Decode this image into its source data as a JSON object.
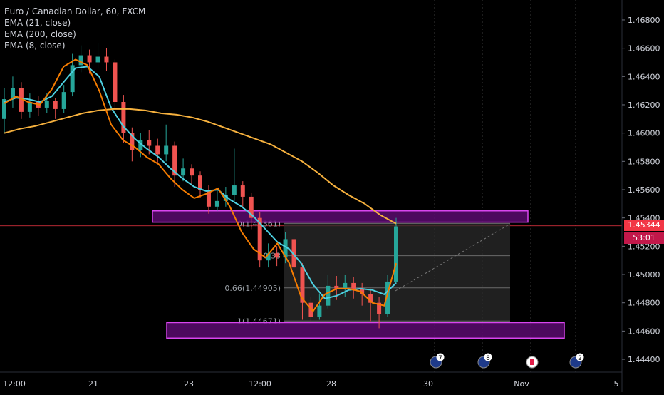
{
  "header": {
    "title": "Euro / Canadian Dollar, 60, FXCM",
    "indicators": [
      "EMA (21, close)",
      "EMA (200, close)",
      "EMA (8, close)"
    ]
  },
  "colors": {
    "background": "#000000",
    "up_candle": "#26a69a",
    "down_candle": "#ef5350",
    "ema21": "#4dd0e1",
    "ema200": "#f6b13e",
    "ema8": "#f57c00",
    "zone_fill": "#5a0a6e",
    "zone_border": "#d946ef",
    "current_price": "#f23645"
  },
  "price_axis": {
    "labels": [
      "1.46800",
      "1.46600",
      "1.46400",
      "1.46200",
      "1.46000",
      "1.45800",
      "1.45600",
      "1.45400",
      "1.45200",
      "1.45000",
      "1.44800",
      "1.44600",
      "1.44400"
    ],
    "current_price": "1.45344",
    "countdown": "53:01"
  },
  "time_axis": {
    "labels": [
      "12:00",
      "21",
      "23",
      "12:00",
      "28",
      "30",
      "Nov",
      "5"
    ]
  },
  "fib_labels": [
    "0(1.45361)",
    "0.33",
    "0.66(1.44905)",
    "1(1.44671)"
  ],
  "events": [
    {
      "icon": "eu-flag-icon",
      "badge": "7"
    },
    {
      "icon": "eu-flag-icon",
      "badge": "8"
    },
    {
      "icon": "canada-flag-icon",
      "badge": ""
    },
    {
      "icon": "eu-flag-icon",
      "badge": "2"
    }
  ],
  "chart_data": {
    "type": "candlestick",
    "title": "Euro / Canadian Dollar, 60, FXCM",
    "ylim": [
      1.4437,
      1.4683
    ],
    "x_tick_labels": [
      "12:00",
      "21",
      "23",
      "12:00",
      "28",
      "30",
      "Nov",
      "5"
    ],
    "series": [
      {
        "name": "EMA (21, close)",
        "values": [
          1.4622,
          1.4625,
          1.4624,
          1.4622,
          1.4626,
          1.4636,
          1.4646,
          1.4647,
          1.464,
          1.4618,
          1.4605,
          1.4596,
          1.4589,
          1.4583,
          1.4575,
          1.4568,
          1.4562,
          1.4559,
          1.456,
          1.4553,
          1.4548,
          1.4541,
          1.4532,
          1.4523,
          1.4518,
          1.4508,
          1.4493,
          1.4483,
          1.4485,
          1.4489,
          1.449,
          1.4489,
          1.4486,
          1.4494
        ]
      },
      {
        "name": "EMA (200, close)",
        "values": [
          1.46,
          1.4603,
          1.4605,
          1.4608,
          1.4611,
          1.4614,
          1.4616,
          1.4617,
          1.4617,
          1.4616,
          1.4614,
          1.4613,
          1.4611,
          1.4608,
          1.4604,
          1.46,
          1.4596,
          1.4592,
          1.4586,
          1.458,
          1.4572,
          1.4563,
          1.4556,
          1.455,
          1.4542,
          1.4536
        ]
      },
      {
        "name": "EMA (8, close)",
        "values": [
          1.4621,
          1.4626,
          1.4622,
          1.462,
          1.4631,
          1.4647,
          1.4652,
          1.4648,
          1.463,
          1.4606,
          1.4595,
          1.459,
          1.4583,
          1.4578,
          1.4568,
          1.456,
          1.4554,
          1.4557,
          1.4561,
          1.4548,
          1.453,
          1.4518,
          1.4512,
          1.4522,
          1.4508,
          1.4484,
          1.4474,
          1.4486,
          1.449,
          1.449,
          1.4488,
          1.448,
          1.4478,
          1.4508
        ]
      }
    ],
    "candles": [
      [
        1.461,
        1.4624,
        1.4632,
        1.46
      ],
      [
        1.4624,
        1.4632,
        1.464,
        1.4618
      ],
      [
        1.4632,
        1.4615,
        1.4636,
        1.461
      ],
      [
        1.4615,
        1.4622,
        1.4628,
        1.4611
      ],
      [
        1.4622,
        1.4618,
        1.4626,
        1.4612
      ],
      [
        1.4618,
        1.4623,
        1.4628,
        1.4614
      ],
      [
        1.4623,
        1.4617,
        1.4625,
        1.461
      ],
      [
        1.4617,
        1.4629,
        1.4634,
        1.4614
      ],
      [
        1.4629,
        1.4648,
        1.4656,
        1.4626
      ],
      [
        1.4648,
        1.4655,
        1.4662,
        1.4643
      ],
      [
        1.4655,
        1.465,
        1.4659,
        1.4642
      ],
      [
        1.465,
        1.4654,
        1.4664,
        1.4646
      ],
      [
        1.4654,
        1.465,
        1.466,
        1.4644
      ],
      [
        1.465,
        1.4622,
        1.4652,
        1.4617
      ],
      [
        1.4622,
        1.46,
        1.4627,
        1.4593
      ],
      [
        1.46,
        1.4588,
        1.4604,
        1.458
      ],
      [
        1.4588,
        1.4595,
        1.46,
        1.4583
      ],
      [
        1.4595,
        1.4591,
        1.4602,
        1.4585
      ],
      [
        1.4591,
        1.4585,
        1.4596,
        1.4578
      ],
      [
        1.4585,
        1.4591,
        1.4606,
        1.458
      ],
      [
        1.4591,
        1.457,
        1.4594,
        1.4562
      ],
      [
        1.457,
        1.4575,
        1.4582,
        1.4566
      ],
      [
        1.4575,
        1.457,
        1.4578,
        1.4563
      ],
      [
        1.457,
        1.456,
        1.4573,
        1.4554
      ],
      [
        1.456,
        1.4548,
        1.4563,
        1.4543
      ],
      [
        1.4548,
        1.4552,
        1.456,
        1.4545
      ],
      [
        1.4552,
        1.4556,
        1.4562,
        1.4548
      ],
      [
        1.4556,
        1.4563,
        1.4589,
        1.4551
      ],
      [
        1.4563,
        1.4555,
        1.4566,
        1.4548
      ],
      [
        1.4555,
        1.454,
        1.4558,
        1.4532
      ],
      [
        1.454,
        1.451,
        1.4544,
        1.4505
      ],
      [
        1.451,
        1.4515,
        1.4522,
        1.4505
      ],
      [
        1.4515,
        1.4512,
        1.452,
        1.4506
      ],
      [
        1.4512,
        1.4525,
        1.453,
        1.4508
      ],
      [
        1.4525,
        1.4505,
        1.4527,
        1.4495
      ],
      [
        1.4505,
        1.448,
        1.4508,
        1.4468
      ],
      [
        1.448,
        1.447,
        1.4484,
        1.4467
      ],
      [
        1.447,
        1.4478,
        1.4486,
        1.4468
      ],
      [
        1.4478,
        1.4492,
        1.45,
        1.4476
      ],
      [
        1.4492,
        1.449,
        1.4499,
        1.4482
      ],
      [
        1.449,
        1.4494,
        1.45,
        1.4484
      ],
      [
        1.4494,
        1.449,
        1.4498,
        1.4483
      ],
      [
        1.449,
        1.4486,
        1.4494,
        1.4478
      ],
      [
        1.4486,
        1.448,
        1.449,
        1.4467
      ],
      [
        1.448,
        1.4472,
        1.4484,
        1.4462
      ],
      [
        1.4472,
        1.4495,
        1.45,
        1.447
      ],
      [
        1.4495,
        1.4534,
        1.454,
        1.4493
      ]
    ],
    "zones": [
      {
        "top": 1.4545,
        "bottom": 1.4537
      },
      {
        "top": 1.4466,
        "bottom": 1.4455
      }
    ],
    "fib_box": {
      "top": 1.45361,
      "bottom": 1.44671,
      "levels": [
        0,
        0.33,
        0.66,
        1
      ]
    }
  }
}
